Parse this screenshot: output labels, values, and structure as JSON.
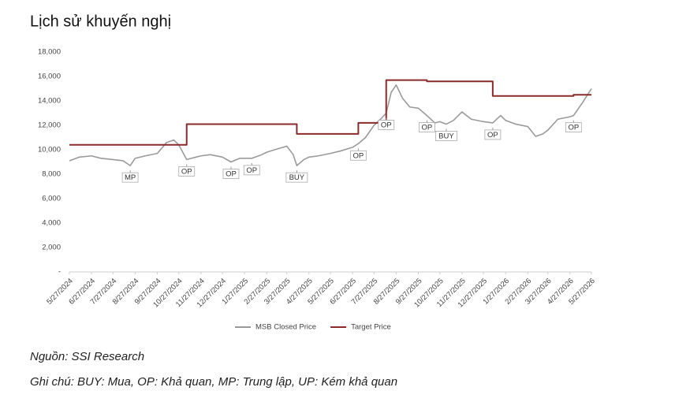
{
  "chart_data": {
    "type": "line",
    "title": "Lịch sử khuyến nghị",
    "xlim": [
      "5/27/2024",
      "5/27/2026"
    ],
    "xticks": [
      "5/27/2024",
      "6/27/2024",
      "7/27/2024",
      "8/27/2024",
      "9/27/2024",
      "10/27/2024",
      "11/27/2024",
      "12/27/2024",
      "1/27/2025",
      "2/27/2025",
      "3/27/2025",
      "4/27/2025",
      "5/27/2025",
      "6/27/2025",
      "7/27/2025",
      "8/27/2025",
      "9/27/2025",
      "10/27/2025",
      "11/27/2025",
      "12/27/2025",
      "1/27/2026",
      "2/27/2026",
      "3/27/2026",
      "4/27/2026",
      "5/27/2026"
    ],
    "ylim": [
      0,
      18000
    ],
    "yticks": [
      {
        "value": 0,
        "label": "-"
      },
      {
        "value": 2000,
        "label": "2,000"
      },
      {
        "value": 4000,
        "label": "4,000"
      },
      {
        "value": 6000,
        "label": "6,000"
      },
      {
        "value": 8000,
        "label": "8,000"
      },
      {
        "value": 10000,
        "label": "10,000"
      },
      {
        "value": 12000,
        "label": "12,000"
      },
      {
        "value": 14000,
        "label": "14,000"
      },
      {
        "value": 16000,
        "label": "16,000"
      },
      {
        "value": 18000,
        "label": "18,000"
      }
    ],
    "grid": false,
    "legend": "bottom",
    "series": [
      {
        "name": "MSB Closed Price",
        "color": "#9a9a9a",
        "step": false,
        "x": [
          "5/27/2024",
          "6/10/2024",
          "6/27/2024",
          "7/10/2024",
          "7/27/2024",
          "8/10/2024",
          "8/20/2024",
          "8/27/2024",
          "9/10/2024",
          "9/27/2024",
          "10/10/2024",
          "10/20/2024",
          "10/27/2024",
          "11/7/2024",
          "11/20/2024",
          "11/27/2024",
          "12/10/2024",
          "12/27/2024",
          "1/8/2025",
          "1/20/2025",
          "2/6/2025",
          "2/20/2025",
          "2/27/2025",
          "3/10/2025",
          "3/27/2025",
          "4/5/2025",
          "4/10/2025",
          "4/20/2025",
          "4/27/2025",
          "5/10/2025",
          "5/27/2025",
          "6/10/2025",
          "6/27/2025",
          "7/5/2025",
          "7/15/2025",
          "7/27/2025",
          "8/5/2025",
          "8/13/2025",
          "8/20/2025",
          "8/27/2025",
          "9/5/2025",
          "9/15/2025",
          "9/27/2025",
          "10/9/2025",
          "10/20/2025",
          "10/27/2025",
          "11/5/2025",
          "11/15/2025",
          "11/27/2025",
          "12/10/2025",
          "12/27/2025",
          "1/9/2026",
          "1/20/2026",
          "1/27/2026",
          "2/10/2026",
          "2/27/2026",
          "3/10/2026",
          "3/20/2026",
          "3/27/2026",
          "4/10/2026",
          "4/27/2026",
          "5/2/2026",
          "5/15/2026",
          "5/27/2026"
        ],
        "values": [
          9100,
          9400,
          9500,
          9300,
          9200,
          9100,
          8700,
          9300,
          9500,
          9700,
          10600,
          10800,
          10400,
          9200,
          9400,
          9500,
          9600,
          9400,
          9000,
          9300,
          9300,
          9600,
          9800,
          10000,
          10300,
          9600,
          8700,
          9200,
          9400,
          9500,
          9700,
          9900,
          10200,
          10500,
          11000,
          12000,
          12500,
          13000,
          14700,
          15300,
          14200,
          13500,
          13400,
          12800,
          12200,
          12300,
          12100,
          12400,
          13100,
          12500,
          12300,
          12200,
          12800,
          12400,
          12100,
          11900,
          11100,
          11300,
          11600,
          12500,
          12700,
          12800,
          13900,
          15000
        ]
      },
      {
        "name": "Target Price",
        "color": "#8b2a2a",
        "step": true,
        "x": [
          "5/27/2024",
          "11/7/2024",
          "4/10/2025",
          "7/5/2025",
          "8/13/2025",
          "10/9/2025",
          "1/9/2026",
          "5/2/2026",
          "5/27/2026"
        ],
        "values": [
          10400,
          12100,
          11300,
          12200,
          15700,
          15600,
          14400,
          14500,
          14500
        ]
      }
    ],
    "annotations": [
      {
        "text": "MP",
        "x": "8/20/2024",
        "y": 8700
      },
      {
        "text": "OP",
        "x": "11/7/2024",
        "y": 9200
      },
      {
        "text": "OP",
        "x": "1/8/2025",
        "y": 9000
      },
      {
        "text": "OP",
        "x": "2/6/2025",
        "y": 9300
      },
      {
        "text": "BUY",
        "x": "4/10/2025",
        "y": 8700
      },
      {
        "text": "OP",
        "x": "7/5/2025",
        "y": 10500
      },
      {
        "text": "OP",
        "x": "8/13/2025",
        "y": 13000
      },
      {
        "text": "OP",
        "x": "10/9/2025",
        "y": 12800
      },
      {
        "text": "BUY",
        "x": "11/5/2025",
        "y": 12100
      },
      {
        "text": "OP",
        "x": "1/9/2026",
        "y": 12200
      },
      {
        "text": "OP",
        "x": "5/2/2026",
        "y": 12800
      }
    ]
  },
  "source": "Nguồn: SSI Research",
  "note": "Ghi chú: BUY: Mua, OP: Khả quan, MP: Trung lập, UP: Kém khả quan"
}
